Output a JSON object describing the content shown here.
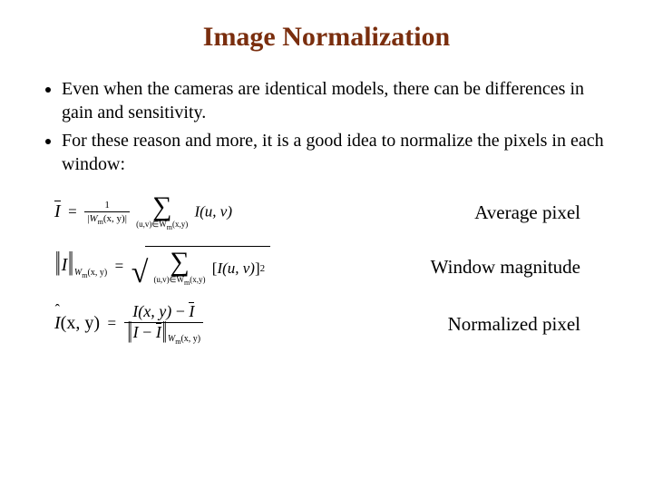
{
  "title_color": "#7a2e0e",
  "text_color": "#000000",
  "background_color": "#ffffff",
  "title": "Image Normalization",
  "title_fontsize": 30,
  "body_fontsize": 20,
  "bullets": [
    "Even when the cameras are identical models, there can be differences in gain and sensitivity.",
    "For these reason and more, it is a good idea to normalize the pixels in each window:"
  ],
  "formulas": {
    "avg": {
      "lhs_symbol": "I",
      "lhs_overline": true,
      "frac_num": "1",
      "frac_den_norm_inner": "W",
      "frac_den_norm_sub1": "m",
      "frac_den_norm_args": "(x, y)",
      "sum_sub": "(u,v)∈W",
      "sum_sub2": "m",
      "sum_sub_tail": "(x,y)",
      "summand": "I(u, v)",
      "label": "Average pixel"
    },
    "mag": {
      "lhs_inner": "I",
      "lhs_sub_outer": "W",
      "lhs_sub_m": "m",
      "lhs_sub_args": "(x, y)",
      "sum_sub": "(u,v)∈W",
      "sum_sub2": "m",
      "sum_sub_tail": "(x,y)",
      "summand_base": "I(u, v)",
      "summand_exp": "2",
      "label": "Window magnitude"
    },
    "norm": {
      "lhs_symbol": "I",
      "lhs_args": "(x, y)",
      "num_left": "I(x, y)",
      "num_minus": "−",
      "num_right": "I",
      "den_norm_left": "I",
      "den_norm_minus": "−",
      "den_norm_right": "I",
      "den_sub_outer": "W",
      "den_sub_m": "m",
      "den_sub_args": "(x, y)",
      "label": "Normalized pixel"
    }
  }
}
